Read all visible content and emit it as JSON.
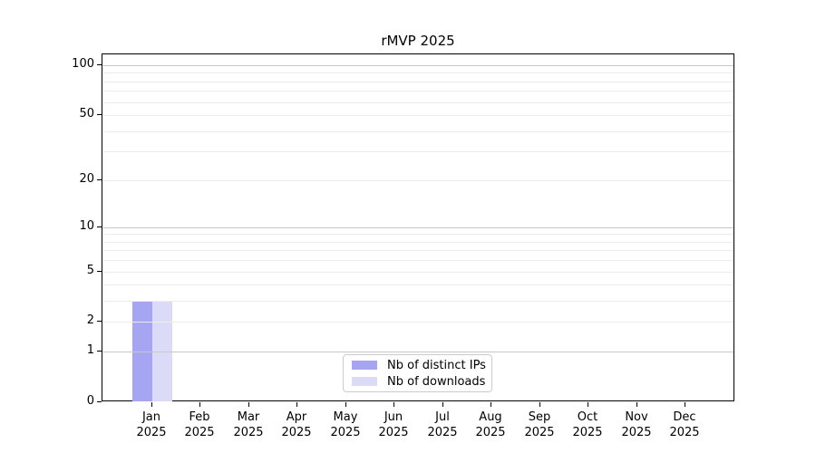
{
  "figure": {
    "title": "rMVP 2025",
    "background_color": "#ffffff"
  },
  "chart_data": {
    "type": "bar",
    "title": "rMVP 2025",
    "categories": [
      "Jan 2025",
      "Feb 2025",
      "Mar 2025",
      "Apr 2025",
      "May 2025",
      "Jun 2025",
      "Jul 2025",
      "Aug 2025",
      "Sep 2025",
      "Oct 2025",
      "Nov 2025",
      "Dec 2025"
    ],
    "series": [
      {
        "name": "Nb of distinct IPs",
        "color": "#a5a5f2",
        "values": [
          3,
          0,
          0,
          0,
          0,
          0,
          0,
          0,
          0,
          0,
          0,
          0
        ]
      },
      {
        "name": "Nb of downloads",
        "color": "#dbdbf7",
        "values": [
          3,
          0,
          0,
          0,
          0,
          0,
          0,
          0,
          0,
          0,
          0,
          0
        ]
      }
    ],
    "xlabel": "",
    "ylabel": "",
    "yscale": "log1p",
    "ylim": [
      0,
      116
    ],
    "ytick_values": [
      0,
      1,
      2,
      5,
      10,
      20,
      50,
      100
    ],
    "ytick_labels": [
      "0",
      "1",
      "2",
      "5",
      "10",
      "20",
      "50",
      "100"
    ],
    "y_major_gridlines": [
      1,
      10,
      100
    ],
    "y_minor_gridlines": [
      2,
      3,
      4,
      5,
      6,
      7,
      8,
      9,
      20,
      30,
      40,
      50,
      60,
      70,
      80,
      90
    ],
    "grid": "horizontal major+minor",
    "legend_position": "lower center inside plot",
    "colors": {
      "grid_major": "#c8c8c8",
      "grid_minor": "#ececec",
      "axis_spine": "#000000",
      "text": "#000000"
    }
  }
}
